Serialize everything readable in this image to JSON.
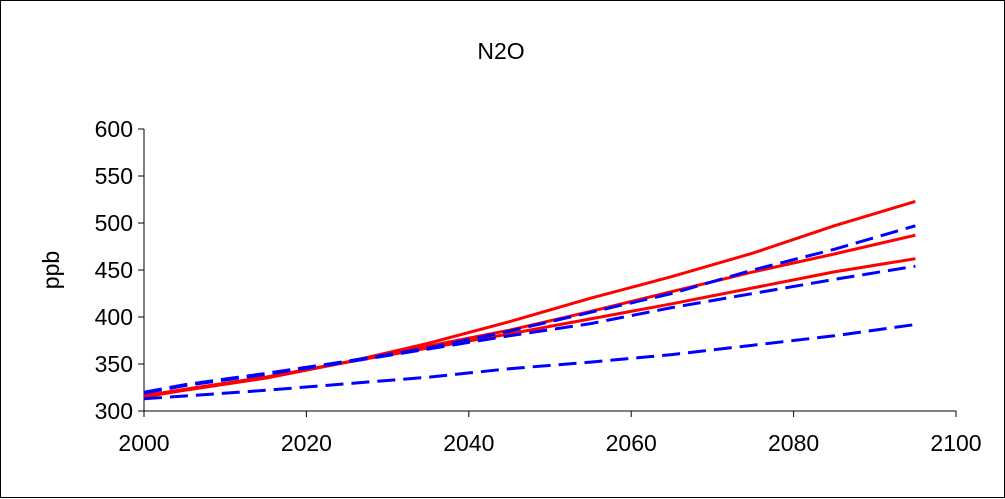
{
  "chart_data": {
    "type": "line",
    "title": "N2O",
    "xlabel": "",
    "ylabel": "ppb",
    "xlim": [
      2000,
      2100
    ],
    "ylim": [
      300,
      600
    ],
    "x_ticks": [
      2000,
      2020,
      2040,
      2060,
      2080,
      2100
    ],
    "y_ticks": [
      300,
      350,
      400,
      450,
      500,
      550,
      600
    ],
    "grid": false,
    "legend": "none",
    "series": [
      {
        "style": "solid",
        "color": "#ff0000",
        "x": [
          2000,
          2005,
          2015,
          2025,
          2035,
          2045,
          2055,
          2065,
          2075,
          2085,
          2095
        ],
        "y": [
          315,
          322,
          335,
          352,
          372,
          395,
          420,
          443,
          468,
          497,
          523
        ]
      },
      {
        "style": "solid",
        "color": "#ff0000",
        "x": [
          2000,
          2005,
          2015,
          2025,
          2035,
          2045,
          2055,
          2065,
          2075,
          2085,
          2095
        ],
        "y": [
          316,
          323,
          336,
          352,
          369,
          386,
          406,
          427,
          448,
          467,
          487
        ]
      },
      {
        "style": "solid",
        "color": "#ff0000",
        "x": [
          2000,
          2005,
          2015,
          2025,
          2035,
          2045,
          2055,
          2065,
          2075,
          2085,
          2095
        ],
        "y": [
          316,
          323,
          336,
          352,
          367,
          382,
          398,
          414,
          431,
          448,
          462
        ]
      },
      {
        "style": "dashed",
        "color": "#0000ff",
        "x": [
          2000,
          2005,
          2015,
          2025,
          2035,
          2045,
          2055,
          2065,
          2075,
          2085,
          2095
        ],
        "y": [
          320,
          328,
          340,
          353,
          367,
          385,
          405,
          425,
          450,
          472,
          497
        ]
      },
      {
        "style": "dashed",
        "color": "#0000ff",
        "x": [
          2000,
          2005,
          2015,
          2025,
          2035,
          2045,
          2055,
          2065,
          2075,
          2085,
          2095
        ],
        "y": [
          319,
          327,
          339,
          352,
          366,
          380,
          393,
          410,
          425,
          440,
          454
        ]
      },
      {
        "style": "dashed",
        "color": "#0000ff",
        "x": [
          2000,
          2005,
          2015,
          2025,
          2035,
          2045,
          2055,
          2065,
          2075,
          2085,
          2095
        ],
        "y": [
          313,
          316,
          322,
          329,
          336,
          345,
          352,
          360,
          370,
          380,
          392
        ]
      }
    ]
  }
}
